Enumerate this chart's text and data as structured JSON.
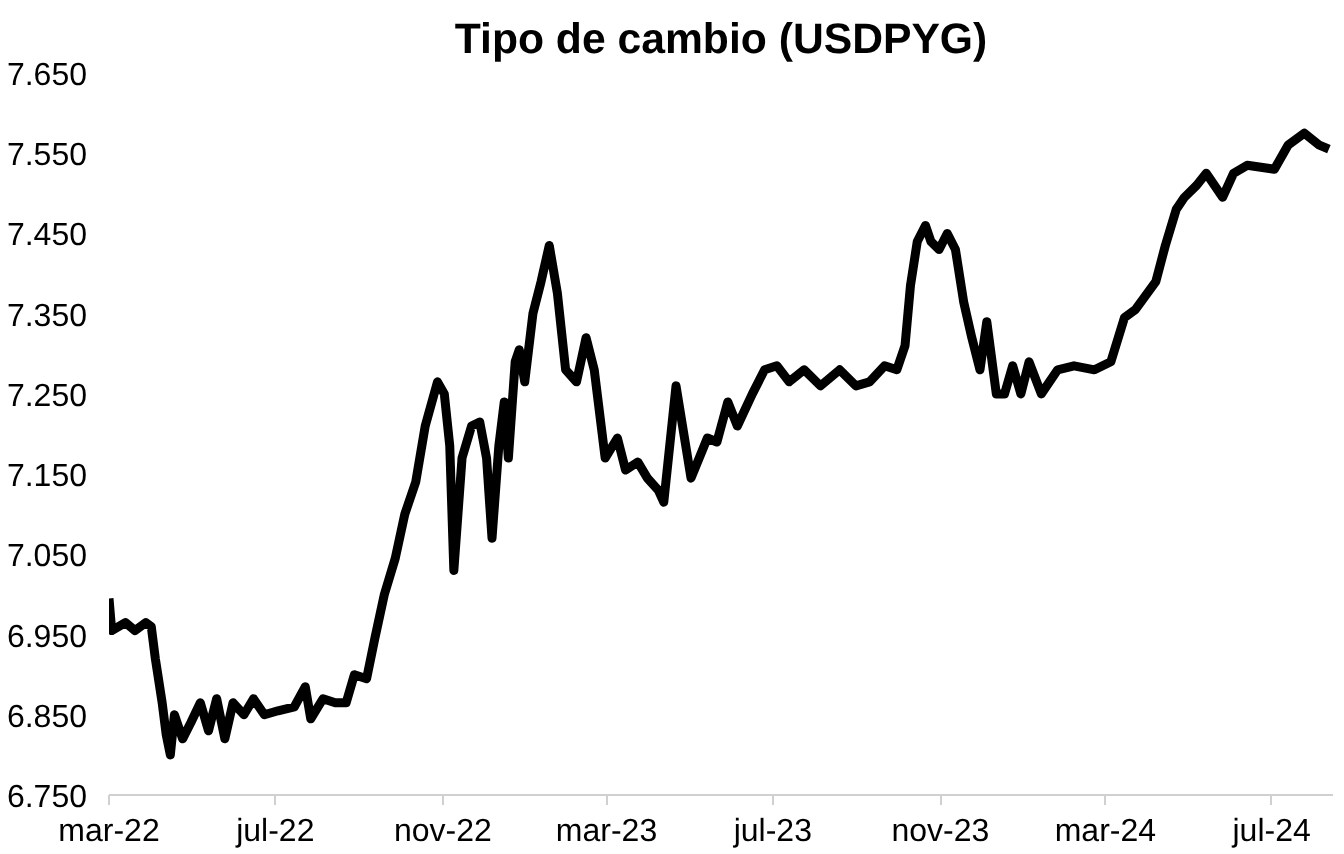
{
  "chart_data": {
    "type": "line",
    "title": "Tipo de cambio (USDPYG)",
    "x": [
      "2022-03-01",
      "2022-03-03",
      "2022-03-13",
      "2022-03-20",
      "2022-03-28",
      "2022-04-01",
      "2022-04-04",
      "2022-04-09",
      "2022-04-12",
      "2022-04-15",
      "2022-04-18",
      "2022-04-24",
      "2022-04-30",
      "2022-05-07",
      "2022-05-13",
      "2022-05-19",
      "2022-05-25",
      "2022-05-31",
      "2022-06-08",
      "2022-06-15",
      "2022-06-23",
      "2022-07-03",
      "2022-07-15",
      "2022-07-23",
      "2022-07-27",
      "2022-08-05",
      "2022-08-14",
      "2022-08-22",
      "2022-08-28",
      "2022-09-06",
      "2022-09-12",
      "2022-09-19",
      "2022-09-27",
      "2022-10-04",
      "2022-10-12",
      "2022-10-19",
      "2022-10-28",
      "2022-11-02",
      "2022-11-06",
      "2022-11-09",
      "2022-11-15",
      "2022-11-22",
      "2022-11-28",
      "2022-12-03",
      "2022-12-07",
      "2022-12-12",
      "2022-12-16",
      "2022-12-19",
      "2022-12-24",
      "2022-12-27",
      "2022-12-31",
      "2023-01-06",
      "2023-01-12",
      "2023-01-18",
      "2023-01-24",
      "2023-01-30",
      "2023-02-07",
      "2023-02-14",
      "2023-02-20",
      "2023-02-28",
      "2023-03-09",
      "2023-03-15",
      "2023-03-24",
      "2023-03-31",
      "2023-04-08",
      "2023-04-12",
      "2023-04-21",
      "2023-05-02",
      "2023-05-14",
      "2023-05-21",
      "2023-05-29",
      "2023-06-05",
      "2023-06-16",
      "2023-06-25",
      "2023-07-04",
      "2023-07-13",
      "2023-07-24",
      "2023-08-05",
      "2023-08-19",
      "2023-08-31",
      "2023-09-10",
      "2023-09-21",
      "2023-09-30",
      "2023-10-06",
      "2023-10-10",
      "2023-10-15",
      "2023-10-21",
      "2023-10-25",
      "2023-10-31",
      "2023-11-06",
      "2023-11-12",
      "2023-11-18",
      "2023-11-24",
      "2023-11-30",
      "2023-12-05",
      "2023-12-12",
      "2023-12-18",
      "2023-12-24",
      "2023-12-30",
      "2024-01-05",
      "2024-01-14",
      "2024-01-26",
      "2024-02-07",
      "2024-02-22",
      "2024-03-05",
      "2024-03-15",
      "2024-03-23",
      "2024-04-07",
      "2024-04-14",
      "2024-04-22",
      "2024-04-28",
      "2024-05-07",
      "2024-05-14",
      "2024-05-26",
      "2024-06-03",
      "2024-06-13",
      "2024-07-03",
      "2024-07-13",
      "2024-07-25",
      "2024-08-05",
      "2024-08-12"
    ],
    "series": [
      {
        "color": "#000000",
        "values": [
          6.995,
          6.955,
          6.965,
          6.955,
          6.965,
          6.96,
          6.92,
          6.865,
          6.825,
          6.8,
          6.85,
          6.82,
          6.84,
          6.865,
          6.83,
          6.87,
          6.82,
          6.865,
          6.85,
          6.87,
          6.85,
          6.855,
          6.86,
          6.885,
          6.845,
          6.87,
          6.865,
          6.865,
          6.9,
          6.895,
          6.945,
          7.0,
          7.045,
          7.1,
          7.14,
          7.21,
          7.265,
          7.25,
          7.185,
          7.03,
          7.17,
          7.21,
          7.215,
          7.17,
          7.07,
          7.185,
          7.24,
          7.17,
          7.29,
          7.305,
          7.265,
          7.35,
          7.39,
          7.435,
          7.375,
          7.28,
          7.265,
          7.32,
          7.28,
          7.17,
          7.195,
          7.155,
          7.165,
          7.145,
          7.13,
          7.115,
          7.26,
          7.145,
          7.195,
          7.19,
          7.24,
          7.21,
          7.25,
          7.28,
          7.285,
          7.265,
          7.28,
          7.26,
          7.28,
          7.26,
          7.265,
          7.285,
          7.28,
          7.31,
          7.385,
          7.44,
          7.46,
          7.44,
          7.43,
          7.45,
          7.43,
          7.365,
          7.32,
          7.28,
          7.34,
          7.25,
          7.25,
          7.285,
          7.25,
          7.29,
          7.25,
          7.28,
          7.285,
          7.28,
          7.29,
          7.345,
          7.355,
          7.39,
          7.435,
          7.48,
          7.495,
          7.51,
          7.525,
          7.495,
          7.525,
          7.535,
          7.53,
          7.56,
          7.575,
          7.56,
          7.555
        ]
      }
    ],
    "xlim": [
      "2022-03-01",
      "2024-08-15"
    ],
    "xticks": [
      {
        "value": "2022-03-01",
        "label": "mar-22"
      },
      {
        "value": "2022-07-01",
        "label": "jul-22"
      },
      {
        "value": "2022-11-01",
        "label": "nov-22"
      },
      {
        "value": "2023-03-01",
        "label": "mar-23"
      },
      {
        "value": "2023-07-01",
        "label": "jul-23"
      },
      {
        "value": "2023-11-01",
        "label": "nov-23"
      },
      {
        "value": "2024-03-01",
        "label": "mar-24"
      },
      {
        "value": "2024-07-01",
        "label": "jul-24"
      }
    ],
    "ylim": [
      6.75,
      7.65
    ],
    "yticks": [
      {
        "value": 6.75,
        "label": "6.750"
      },
      {
        "value": 6.85,
        "label": "6.850"
      },
      {
        "value": 6.95,
        "label": "6.950"
      },
      {
        "value": 7.05,
        "label": "7.050"
      },
      {
        "value": 7.15,
        "label": "7.150"
      },
      {
        "value": 7.25,
        "label": "7.250"
      },
      {
        "value": 7.35,
        "label": "7.350"
      },
      {
        "value": 7.45,
        "label": "7.450"
      },
      {
        "value": 7.55,
        "label": "7.550"
      },
      {
        "value": 7.65,
        "label": "7.650"
      }
    ],
    "grid": false,
    "marker": "none",
    "line_style": "solid"
  }
}
